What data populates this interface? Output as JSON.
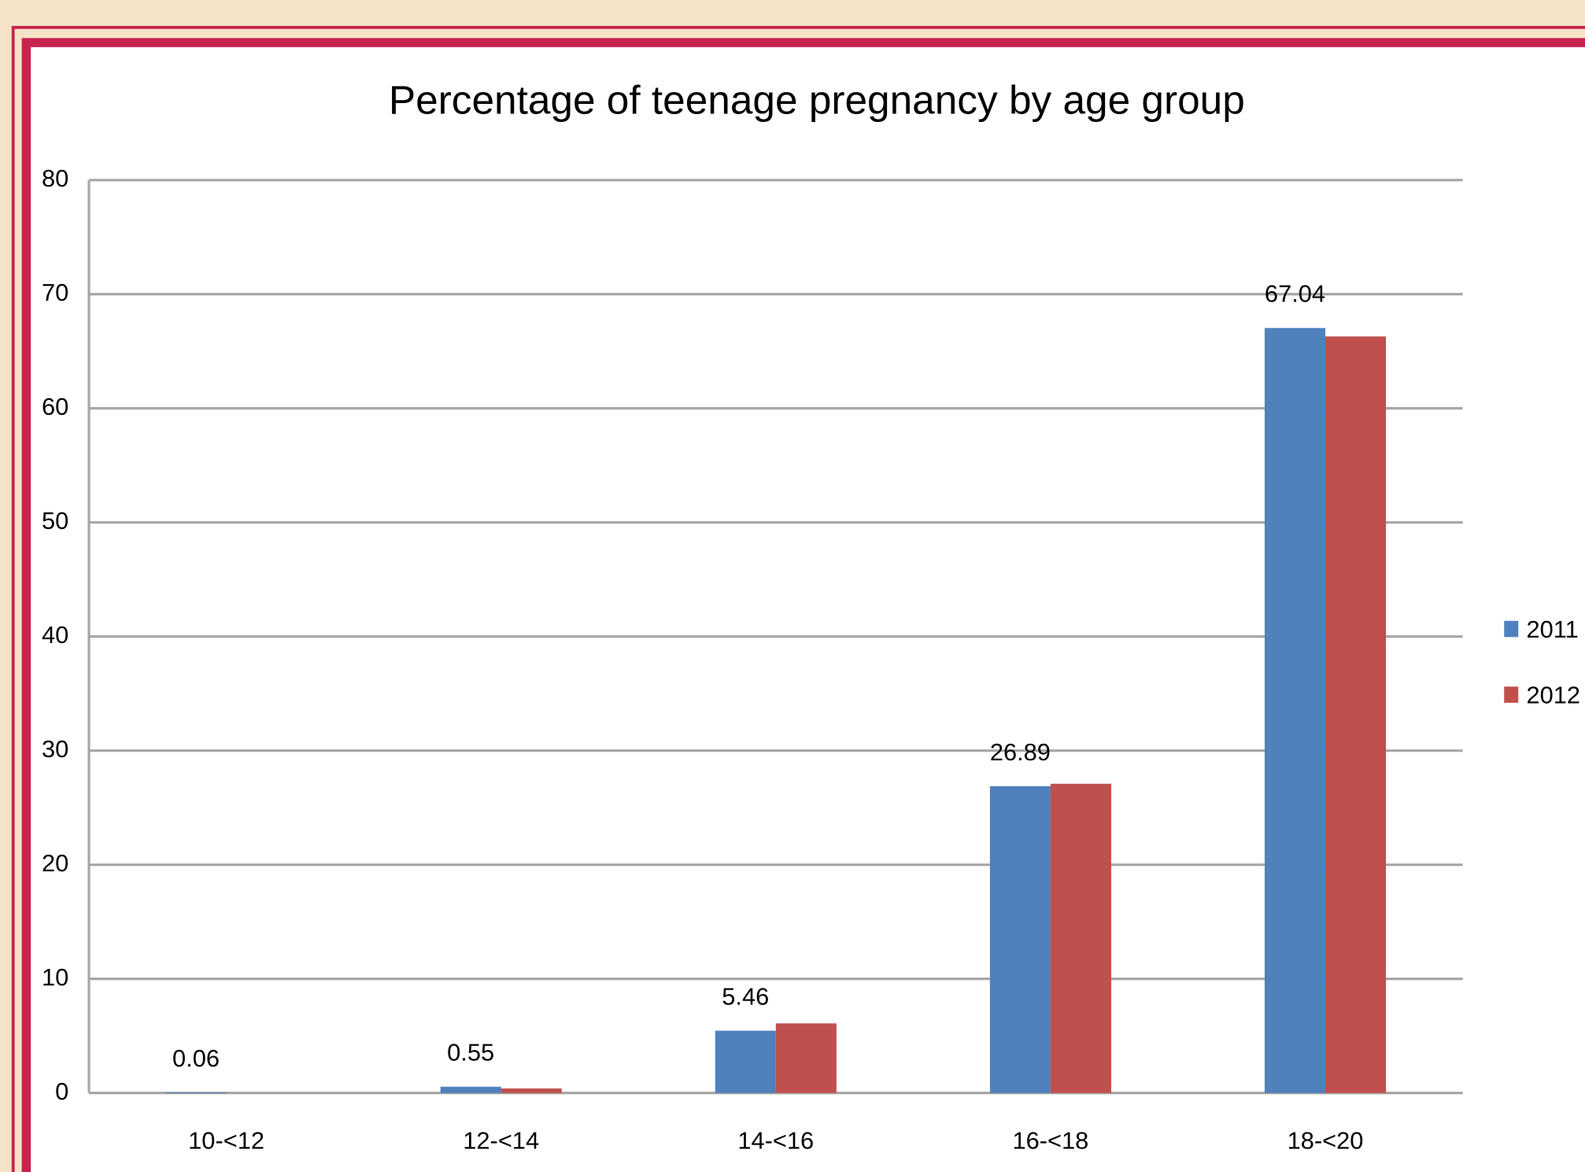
{
  "chart_data": {
    "type": "bar",
    "title": "Percentage of teenage pregnancy by age group",
    "categories": [
      "10-<12",
      "12-<14",
      "14-<16",
      "16-<18",
      "18-<20"
    ],
    "series": [
      {
        "name": "2011",
        "color": "#4f81bd",
        "values": [
          0.06,
          0.55,
          5.46,
          26.89,
          67.04
        ]
      },
      {
        "name": "2012",
        "color": "#c0504d",
        "values": [
          0.0,
          0.4,
          6.1,
          27.1,
          66.3
        ]
      }
    ],
    "ylim": [
      0,
      80
    ],
    "yticks": [
      0,
      10,
      20,
      30,
      40,
      50,
      60,
      70,
      80
    ],
    "grid": true,
    "legend": "right"
  }
}
